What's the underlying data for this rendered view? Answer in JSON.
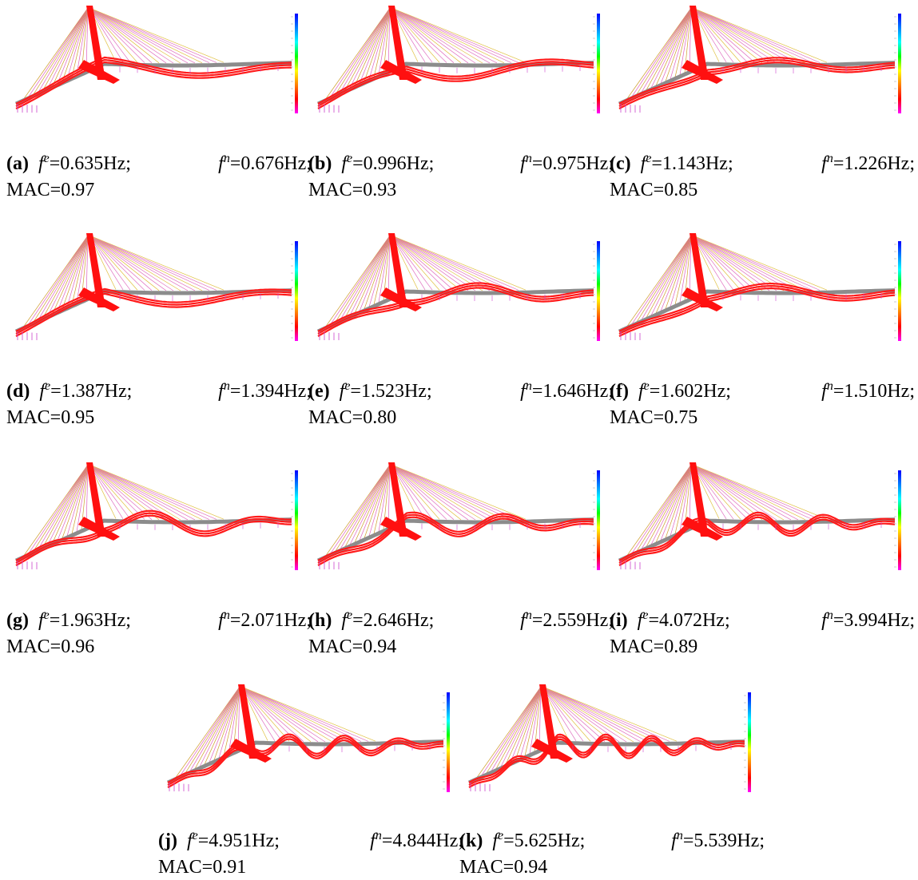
{
  "figure": {
    "panels": [
      {
        "label": "(a)",
        "fe": "=0.635Hz;",
        "fn": "=0.676Hz;",
        "mac": "MAC=0.97"
      },
      {
        "label": "(b)",
        "fe": "=0.996Hz;",
        "fn": "=0.975Hz;",
        "mac": "MAC=0.93"
      },
      {
        "label": "(c)",
        "fe": "=1.143Hz;",
        "fn": "=1.226Hz;",
        "mac": "MAC=0.85"
      },
      {
        "label": "(d)",
        "fe": "=1.387Hz;",
        "fn": "=1.394Hz;",
        "mac": "MAC=0.95"
      },
      {
        "label": "(e)",
        "fe": "=1.523Hz;",
        "fn": "=1.646Hz;",
        "mac": "MAC=0.80"
      },
      {
        "label": "(f)",
        "fe": "=1.602Hz;",
        "fn": "=1.510Hz;",
        "mac": "MAC=0.75"
      },
      {
        "label": "(g)",
        "fe": "=1.963Hz;",
        "fn": "=2.071Hz;",
        "mac": "MAC=0.96"
      },
      {
        "label": "(h)",
        "fe": "=2.646Hz;",
        "fn": "=2.559Hz;",
        "mac": "MAC=0.94"
      },
      {
        "label": "(i)",
        "fe": "=4.072Hz;",
        "fn": "=3.994Hz;",
        "mac": "MAC=0.89"
      },
      {
        "label": "(j)",
        "fe": "=4.951Hz;",
        "fn": "=4.844Hz;",
        "mac": "MAC=0.91"
      },
      {
        "label": "(k)",
        "fe": "=5.625Hz;",
        "fn": "=5.539Hz;",
        "mac": "MAC=0.94"
      }
    ],
    "symbols": {
      "f": "f",
      "e": "e",
      "n": "n"
    }
  },
  "colors": {
    "deformed": "#ff1a1a",
    "undeformed": "#8c8c8c",
    "pylon": "#ff1010",
    "support": "#cc44cc",
    "colorbar": [
      "#ff00ff",
      "#ff0000",
      "#ff8000",
      "#ffff00",
      "#00ff00",
      "#00ffff",
      "#0080ff",
      "#0000ff"
    ]
  }
}
